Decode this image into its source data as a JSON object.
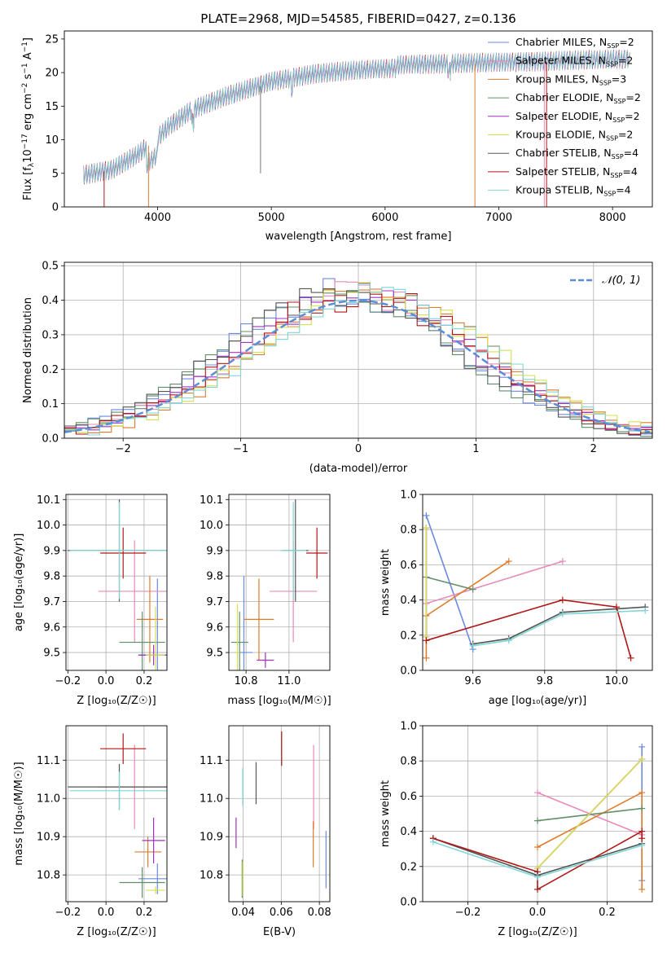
{
  "colors": {
    "Chabrier MILES": "#6c8ae0",
    "Salpeter MILES": "#e88aba",
    "Kroupa MILES": "#e07b2c",
    "Chabrier ELODIE": "#5f8f67",
    "Salpeter ELODIE": "#a030c0",
    "Kroupa ELODIE": "#d6e050",
    "Chabrier STELIB": "#555555",
    "Salpeter STELIB": "#b01818",
    "Kroupa STELIB": "#7fd6d6",
    "gauss": "#5b8ed6"
  },
  "chart_data": [
    {
      "id": "spectrum",
      "type": "line",
      "title": "PLATE=2968, MJD=54585, FIBERID=0427, z=0.136",
      "xlabel": "wavelength [Angstrom, rest frame]",
      "ylabel_parts": [
        "Flux [f",
        "λ",
        "10",
        "−17",
        " erg cm",
        "−2",
        " s",
        "−1",
        " A",
        "−1",
        "]"
      ],
      "xlim": [
        3180,
        8350
      ],
      "ylim": [
        0,
        26.2
      ],
      "xticks": [
        4000,
        5000,
        6000,
        7000,
        8000
      ],
      "yticks": [
        0,
        5,
        10,
        15,
        20,
        25
      ],
      "legend_position": "upper-right",
      "legend": [
        {
          "name": "Chabrier MILES",
          "nssp": "2"
        },
        {
          "name": "Salpeter MILES",
          "nssp": "2"
        },
        {
          "name": "Kroupa MILES",
          "nssp": "3"
        },
        {
          "name": "Chabrier ELODIE",
          "nssp": "2"
        },
        {
          "name": "Salpeter ELODIE",
          "nssp": "2"
        },
        {
          "name": "Kroupa ELODIE",
          "nssp": "2"
        },
        {
          "name": "Chabrier STELIB",
          "nssp": "4"
        },
        {
          "name": "Salpeter STELIB",
          "nssp": "4"
        },
        {
          "name": "Kroupa STELIB",
          "nssp": "4"
        }
      ],
      "continuum_x": [
        3350,
        3600,
        3800,
        3950,
        4100,
        4300,
        4600,
        5000,
        5400,
        5800,
        6200,
        6600,
        7000,
        7400,
        7700,
        8000,
        8200
      ],
      "continuum_y": [
        4.7,
        5.5,
        7.5,
        9.5,
        12.0,
        14.5,
        16.5,
        18.8,
        20.0,
        20.6,
        21.0,
        21.2,
        21.4,
        21.6,
        21.8,
        22.0,
        22.0
      ],
      "model_ranges": [
        [
          3350,
          7450
        ],
        [
          3520,
          7420
        ],
        [
          3900,
          6800
        ],
        [
          3500,
          7430
        ],
        [
          3350,
          8100
        ],
        [
          3350,
          8100
        ]
      ]
    },
    {
      "id": "residuals",
      "type": "bar",
      "xlabel": "(data-model)/error",
      "ylabel": "Normed distribution",
      "xlim": [
        -2.5,
        2.5
      ],
      "ylim": [
        0,
        0.51
      ],
      "xticks": [
        -2,
        -1,
        0,
        1,
        2
      ],
      "yticks": [
        0.0,
        0.1,
        0.2,
        0.3,
        0.4,
        0.5
      ],
      "legend": "𝒩(0, 1)",
      "legend_position": "upper-right",
      "bin_width": 0.1
    },
    {
      "id": "age-vs-Z",
      "type": "scatter",
      "xlabel": "Z [log₁₀(Z/Z☉)]",
      "ylabel": "age  [log₁₀(age/yr)]",
      "xlim": [
        -0.21,
        0.32
      ],
      "ylim": [
        9.43,
        10.12
      ],
      "xticks": [
        -0.2,
        0.0,
        0.2
      ],
      "yticks": [
        9.5,
        9.6,
        9.7,
        9.8,
        9.9,
        10.0,
        10.1
      ],
      "points": [
        {
          "series": "Chabrier MILES",
          "x": 0.27,
          "xerr": 0.1,
          "y": 9.49,
          "yerr": 0.3
        },
        {
          "series": "Salpeter MILES",
          "x": 0.15,
          "xerr": 0.19,
          "y": 9.74,
          "yerr": 0.2
        },
        {
          "series": "Kroupa MILES",
          "x": 0.23,
          "xerr": 0.07,
          "y": 9.63,
          "yerr": 0.17
        },
        {
          "series": "Chabrier ELODIE",
          "x": 0.19,
          "xerr": 0.12,
          "y": 9.54,
          "yerr": 0.12
        },
        {
          "series": "Salpeter ELODIE",
          "x": 0.25,
          "xerr": 0.08,
          "y": 9.49,
          "yerr": 0.04
        },
        {
          "series": "Kroupa ELODIE",
          "x": 0.26,
          "xerr": 0.05,
          "y": 9.49,
          "yerr": 0.19
        },
        {
          "series": "Chabrier STELIB",
          "x": 0.07,
          "xerr": 0.27,
          "y": 9.9,
          "yerr": 0.2
        },
        {
          "series": "Salpeter STELIB",
          "x": 0.09,
          "xerr": 0.12,
          "y": 9.89,
          "yerr": 0.1
        },
        {
          "series": "Kroupa STELIB",
          "x": 0.07,
          "xerr": 0.26,
          "y": 9.9,
          "yerr": 0.19
        }
      ]
    },
    {
      "id": "age-vs-mass",
      "type": "scatter",
      "xlabel": "mass [log₁₀(M/M☉)]",
      "ylabel": "",
      "xlim": [
        10.72,
        11.19
      ],
      "ylim": [
        9.43,
        10.12
      ],
      "xticks": [
        10.8,
        11.0
      ],
      "xticklabels": [
        "10.8",
        "11.0"
      ],
      "yticks": [
        9.5,
        9.6,
        9.7,
        9.8,
        9.9,
        10.0,
        10.1
      ],
      "points": [
        {
          "series": "Chabrier MILES",
          "x": 10.79,
          "xerr": 0.04,
          "y": 9.5,
          "yerr": 0.3
        },
        {
          "series": "Salpeter MILES",
          "x": 11.02,
          "xerr": 0.11,
          "y": 9.74,
          "yerr": 0.2
        },
        {
          "series": "Kroupa MILES",
          "x": 10.86,
          "xerr": 0.07,
          "y": 9.63,
          "yerr": 0.16
        },
        {
          "series": "Chabrier ELODIE",
          "x": 10.77,
          "xerr": 0.04,
          "y": 9.54,
          "yerr": 0.12
        },
        {
          "series": "Salpeter ELODIE",
          "x": 10.89,
          "xerr": 0.04,
          "y": 9.47,
          "yerr": 0.03
        },
        {
          "series": "Kroupa ELODIE",
          "x": 10.76,
          "xerr": 0.01,
          "y": 9.5,
          "yerr": 0.19
        },
        {
          "series": "Chabrier STELIB",
          "x": 11.03,
          "xerr": 0.06,
          "y": 9.9,
          "yerr": 0.2
        },
        {
          "series": "Salpeter STELIB",
          "x": 11.13,
          "xerr": 0.05,
          "y": 9.89,
          "yerr": 0.1
        },
        {
          "series": "Kroupa STELIB",
          "x": 11.02,
          "xerr": 0.06,
          "y": 9.9,
          "yerr": 0.19
        }
      ]
    },
    {
      "id": "weight-vs-age",
      "type": "line",
      "xlabel": "age  [log₁₀(age/yr)]",
      "ylabel": "mass weight",
      "xlim": [
        9.46,
        10.1
      ],
      "ylim": [
        0,
        1.0
      ],
      "xticks": [
        9.6,
        9.8,
        10.0
      ],
      "yticks": [
        0.0,
        0.2,
        0.4,
        0.6,
        0.8,
        1.0
      ],
      "series": [
        {
          "name": "Chabrier MILES",
          "x": [
            9.47,
            9.6
          ],
          "y": [
            0.88,
            0.12
          ]
        },
        {
          "name": "Salpeter MILES",
          "x": [
            9.47,
            9.85
          ],
          "y": [
            0.38,
            0.62
          ]
        },
        {
          "name": "Kroupa MILES",
          "x": [
            9.47,
            9.47,
            9.7
          ],
          "y": [
            0.07,
            0.31,
            0.62
          ]
        },
        {
          "name": "Chabrier ELODIE",
          "x": [
            9.47,
            9.6
          ],
          "y": [
            0.53,
            0.46
          ]
        },
        {
          "name": "Salpeter ELODIE",
          "x": [
            9.47,
            9.47
          ],
          "y": [
            0.81,
            0.19
          ]
        },
        {
          "name": "Kroupa ELODIE",
          "x": [
            9.47,
            9.47
          ],
          "y": [
            0.81,
            0.19
          ]
        },
        {
          "name": "Chabrier STELIB",
          "x": [
            9.6,
            9.7,
            9.85,
            10.08
          ],
          "y": [
            0.15,
            0.18,
            0.33,
            0.36
          ]
        },
        {
          "name": "Salpeter STELIB",
          "x": [
            9.47,
            9.85,
            10.0,
            10.04
          ],
          "y": [
            0.17,
            0.4,
            0.36,
            0.07
          ]
        },
        {
          "name": "Kroupa STELIB",
          "x": [
            9.6,
            9.7,
            9.85,
            10.08
          ],
          "y": [
            0.14,
            0.17,
            0.32,
            0.34
          ]
        }
      ]
    },
    {
      "id": "mass-vs-Z",
      "type": "scatter",
      "xlabel": "Z [log₁₀(Z/Z☉)]",
      "ylabel": "mass [log₁₀(M/M☉)]",
      "xlim": [
        -0.21,
        0.32
      ],
      "ylim": [
        10.73,
        11.19
      ],
      "xticks": [
        -0.2,
        0.0,
        0.2
      ],
      "yticks": [
        10.8,
        10.9,
        11.0,
        11.1
      ],
      "points": [
        {
          "series": "Chabrier MILES",
          "x": 0.27,
          "xerr": 0.1,
          "y": 10.79,
          "yerr": 0.04
        },
        {
          "series": "Salpeter MILES",
          "x": 0.15,
          "xerr": 0.19,
          "y": 11.03,
          "yerr": 0.11
        },
        {
          "series": "Kroupa MILES",
          "x": 0.22,
          "xerr": 0.07,
          "y": 10.86,
          "yerr": 0.04
        },
        {
          "series": "Chabrier ELODIE",
          "x": 0.19,
          "xerr": 0.12,
          "y": 10.78,
          "yerr": 0.04
        },
        {
          "series": "Salpeter ELODIE",
          "x": 0.25,
          "xerr": 0.06,
          "y": 10.89,
          "yerr": 0.06
        },
        {
          "series": "Kroupa ELODIE",
          "x": 0.26,
          "xerr": 0.05,
          "y": 10.76,
          "yerr": 0.01
        },
        {
          "series": "Chabrier STELIB",
          "x": 0.07,
          "xerr": 0.27,
          "y": 11.03,
          "yerr": 0.06
        },
        {
          "series": "Salpeter STELIB",
          "x": 0.09,
          "xerr": 0.12,
          "y": 11.13,
          "yerr": 0.04
        },
        {
          "series": "Kroupa STELIB",
          "x": 0.07,
          "xerr": 0.26,
          "y": 11.02,
          "yerr": 0.05
        }
      ]
    },
    {
      "id": "mass-vs-EBV",
      "type": "scatter",
      "xlabel": "E(B-V)",
      "ylabel": "",
      "xlim": [
        0.0325,
        0.0855
      ],
      "ylim": [
        10.73,
        11.19
      ],
      "xticks": [
        0.04,
        0.06,
        0.08
      ],
      "yticks": [
        10.8,
        10.9,
        11.0,
        11.1
      ],
      "points": [
        {
          "series": "Chabrier MILES",
          "x": 0.0835,
          "xerr": 0,
          "y": 10.84,
          "yerr": 0.075
        },
        {
          "series": "Salpeter MILES",
          "x": 0.077,
          "xerr": 0,
          "y": 11.03,
          "yerr": 0.11
        },
        {
          "series": "Kroupa MILES",
          "x": 0.0768,
          "xerr": 0,
          "y": 10.88,
          "yerr": 0.06
        },
        {
          "series": "Chabrier ELODIE",
          "x": 0.0395,
          "xerr": 0,
          "y": 10.79,
          "yerr": 0.05
        },
        {
          "series": "Salpeter ELODIE",
          "x": 0.0363,
          "xerr": 0,
          "y": 10.91,
          "yerr": 0.04
        },
        {
          "series": "Kroupa ELODIE",
          "x": 0.0398,
          "xerr": 0,
          "y": 10.79,
          "yerr": 0.045
        },
        {
          "series": "Chabrier STELIB",
          "x": 0.0468,
          "xerr": 0,
          "y": 11.04,
          "yerr": 0.055
        },
        {
          "series": "Salpeter STELIB",
          "x": 0.0602,
          "xerr": 0,
          "y": 11.13,
          "yerr": 0.045
        },
        {
          "series": "Kroupa STELIB",
          "x": 0.0398,
          "xerr": 0,
          "y": 11.03,
          "yerr": 0.05
        }
      ]
    },
    {
      "id": "weight-vs-Z",
      "type": "line",
      "xlabel": "Z [log₁₀(Z/Z☉)]",
      "ylabel": "mass weight",
      "xlim": [
        -0.33,
        0.33
      ],
      "ylim": [
        0,
        1.0
      ],
      "xticks": [
        -0.2,
        0.0,
        0.2
      ],
      "yticks": [
        0.0,
        0.2,
        0.4,
        0.6,
        0.8,
        1.0
      ],
      "series": [
        {
          "name": "Chabrier MILES",
          "x": [
            0.3,
            0.3
          ],
          "y": [
            0.88,
            0.12
          ]
        },
        {
          "name": "Salpeter MILES",
          "x": [
            0.0,
            0.3
          ],
          "y": [
            0.62,
            0.38
          ]
        },
        {
          "name": "Kroupa MILES",
          "x": [
            0.0,
            0.3,
            0.3
          ],
          "y": [
            0.31,
            0.62,
            0.07
          ]
        },
        {
          "name": "Chabrier ELODIE",
          "x": [
            0.0,
            0.3
          ],
          "y": [
            0.46,
            0.53
          ]
        },
        {
          "name": "Salpeter ELODIE",
          "x": [
            0.0,
            0.3
          ],
          "y": [
            0.19,
            0.81
          ]
        },
        {
          "name": "Kroupa ELODIE",
          "x": [
            0.0,
            0.3
          ],
          "y": [
            0.19,
            0.81
          ]
        },
        {
          "name": "Chabrier STELIB",
          "x": [
            -0.3,
            0.0,
            0.3
          ],
          "y": [
            0.36,
            0.15,
            0.33
          ]
        },
        {
          "name": "Salpeter STELIB",
          "x": [
            -0.3,
            0.0,
            0.0,
            0.3,
            0.3
          ],
          "y": [
            0.36,
            0.17,
            0.07,
            0.4,
            0.36
          ]
        },
        {
          "name": "Kroupa STELIB",
          "x": [
            -0.3,
            0.0,
            0.3
          ],
          "y": [
            0.34,
            0.14,
            0.32
          ]
        }
      ]
    }
  ]
}
